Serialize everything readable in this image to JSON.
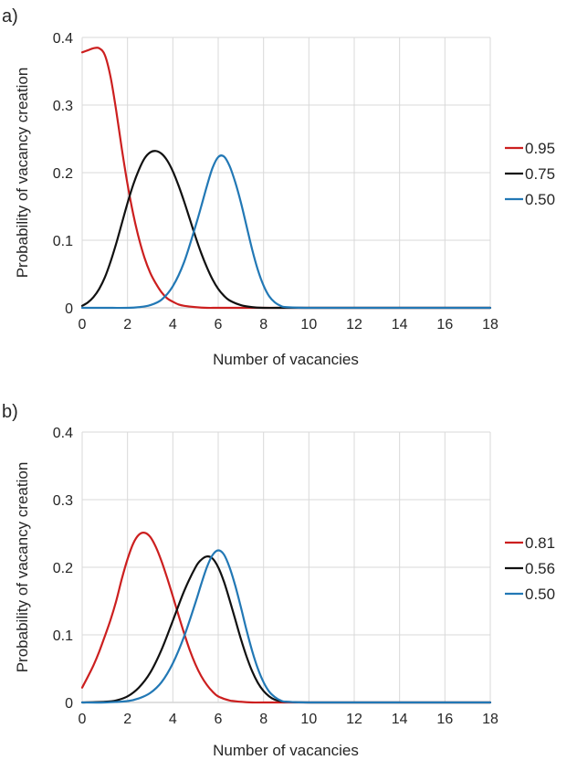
{
  "panels": [
    {
      "label": "a)",
      "chart_data": {
        "type": "line",
        "xlabel": "Number of vacancies",
        "ylabel": "Probability of vacancy creation",
        "xlim": [
          0,
          18
        ],
        "ylim": [
          0,
          0.4
        ],
        "xticks": [
          "0",
          "2",
          "4",
          "6",
          "8",
          "10",
          "12",
          "14",
          "16",
          "18"
        ],
        "yticks": [
          "0",
          "0.1",
          "0.2",
          "0.3",
          "0.4"
        ],
        "grid": true,
        "legend_position": "right",
        "series": [
          {
            "name": "0.95",
            "color": "#cc1f1f",
            "x": [
              0,
              0.25,
              0.5,
              0.75,
              1,
              1.25,
              1.5,
              1.75,
              2,
              2.25,
              2.5,
              2.75,
              3,
              3.25,
              3.5,
              3.75,
              4,
              4.25,
              4.5,
              5,
              5.5,
              6,
              7,
              8,
              9,
              10,
              12,
              14,
              16,
              18
            ],
            "y": [
              0.378,
              0.381,
              0.384,
              0.384,
              0.374,
              0.342,
              0.292,
              0.235,
              0.183,
              0.139,
              0.103,
              0.074,
              0.052,
              0.036,
              0.023,
              0.014,
              0.009,
              0.005,
              0.003,
              0.001,
              0,
              0,
              0,
              0,
              0,
              0,
              0,
              0,
              0,
              0
            ]
          },
          {
            "name": "0.75",
            "color": "#111111",
            "x": [
              0,
              0.25,
              0.5,
              0.75,
              1,
              1.25,
              1.5,
              1.75,
              2,
              2.25,
              2.5,
              2.75,
              3,
              3.25,
              3.5,
              3.75,
              4,
              4.25,
              4.5,
              4.75,
              5,
              5.25,
              5.5,
              5.75,
              6,
              6.25,
              6.5,
              7,
              7.5,
              8,
              9,
              10,
              12,
              14,
              16,
              18
            ],
            "y": [
              0.003,
              0.008,
              0.016,
              0.028,
              0.045,
              0.068,
              0.095,
              0.125,
              0.155,
              0.182,
              0.204,
              0.221,
              0.23,
              0.232,
              0.228,
              0.218,
              0.202,
              0.181,
              0.157,
              0.131,
              0.105,
              0.081,
              0.06,
              0.042,
              0.028,
              0.018,
              0.011,
              0.004,
              0.001,
              0,
              0,
              0,
              0,
              0,
              0,
              0
            ]
          },
          {
            "name": "0.50",
            "color": "#2278b5",
            "x": [
              0,
              1,
              2,
              2.5,
              3,
              3.5,
              4,
              4.5,
              5,
              5.25,
              5.5,
              5.75,
              6,
              6.25,
              6.5,
              6.75,
              7,
              7.25,
              7.5,
              7.75,
              8,
              8.25,
              8.5,
              8.75,
              9,
              10,
              12,
              14,
              16,
              18
            ],
            "y": [
              0,
              0,
              0,
              0.001,
              0.004,
              0.012,
              0.032,
              0.068,
              0.121,
              0.15,
              0.18,
              0.207,
              0.223,
              0.224,
              0.21,
              0.186,
              0.156,
              0.121,
              0.086,
              0.056,
              0.033,
              0.017,
              0.008,
              0.003,
              0.001,
              0,
              0,
              0,
              0,
              0
            ]
          }
        ]
      }
    },
    {
      "label": "b)",
      "chart_data": {
        "type": "line",
        "xlabel": "Number of vacancies",
        "ylabel": "Probability of vacancy creation",
        "xlim": [
          0,
          18
        ],
        "ylim": [
          0,
          0.4
        ],
        "xticks": [
          "0",
          "2",
          "4",
          "6",
          "8",
          "10",
          "12",
          "14",
          "16",
          "18"
        ],
        "yticks": [
          "0",
          "0.1",
          "0.2",
          "0.3",
          "0.4"
        ],
        "grid": true,
        "legend_position": "right",
        "series": [
          {
            "name": "0.81",
            "color": "#cc1f1f",
            "x": [
              0,
              0.25,
              0.5,
              0.75,
              1,
              1.25,
              1.5,
              1.75,
              2,
              2.25,
              2.5,
              2.75,
              3,
              3.25,
              3.5,
              3.75,
              4,
              4.25,
              4.5,
              4.75,
              5,
              5.25,
              5.5,
              5.75,
              6,
              6.5,
              7,
              7.5,
              8,
              10,
              12,
              14,
              16,
              18
            ],
            "y": [
              0.022,
              0.038,
              0.055,
              0.075,
              0.098,
              0.122,
              0.15,
              0.183,
              0.212,
              0.235,
              0.248,
              0.251,
              0.245,
              0.23,
              0.209,
              0.184,
              0.157,
              0.129,
              0.102,
              0.077,
              0.056,
              0.039,
              0.026,
              0.016,
              0.009,
              0.003,
              0.001,
              0,
              0,
              0,
              0,
              0,
              0,
              0
            ]
          },
          {
            "name": "0.56",
            "color": "#111111",
            "x": [
              0,
              1,
              1.5,
              2,
              2.5,
              3,
              3.5,
              4,
              4.5,
              5,
              5.25,
              5.5,
              5.75,
              6,
              6.25,
              6.5,
              6.75,
              7,
              7.25,
              7.5,
              7.75,
              8,
              8.25,
              8.5,
              8.75,
              9,
              10,
              12,
              14,
              16,
              18
            ],
            "y": [
              0,
              0.001,
              0.003,
              0.009,
              0.022,
              0.044,
              0.078,
              0.121,
              0.165,
              0.2,
              0.211,
              0.216,
              0.213,
              0.2,
              0.179,
              0.152,
              0.123,
              0.094,
              0.068,
              0.046,
              0.029,
              0.017,
              0.009,
              0.004,
              0.002,
              0.001,
              0,
              0,
              0,
              0,
              0
            ]
          },
          {
            "name": "0.50",
            "color": "#2278b5",
            "x": [
              0,
              1,
              2,
              2.5,
              3,
              3.5,
              4,
              4.5,
              5,
              5.25,
              5.5,
              5.75,
              6,
              6.25,
              6.5,
              6.75,
              7,
              7.25,
              7.5,
              7.75,
              8,
              8.25,
              8.5,
              8.75,
              9,
              10,
              12,
              14,
              16,
              18
            ],
            "y": [
              0,
              0,
              0.002,
              0.006,
              0.014,
              0.03,
              0.058,
              0.098,
              0.148,
              0.175,
              0.2,
              0.218,
              0.225,
              0.219,
              0.2,
              0.173,
              0.141,
              0.107,
              0.076,
              0.05,
              0.03,
              0.016,
              0.008,
              0.003,
              0.001,
              0,
              0,
              0,
              0,
              0
            ]
          }
        ]
      }
    }
  ]
}
